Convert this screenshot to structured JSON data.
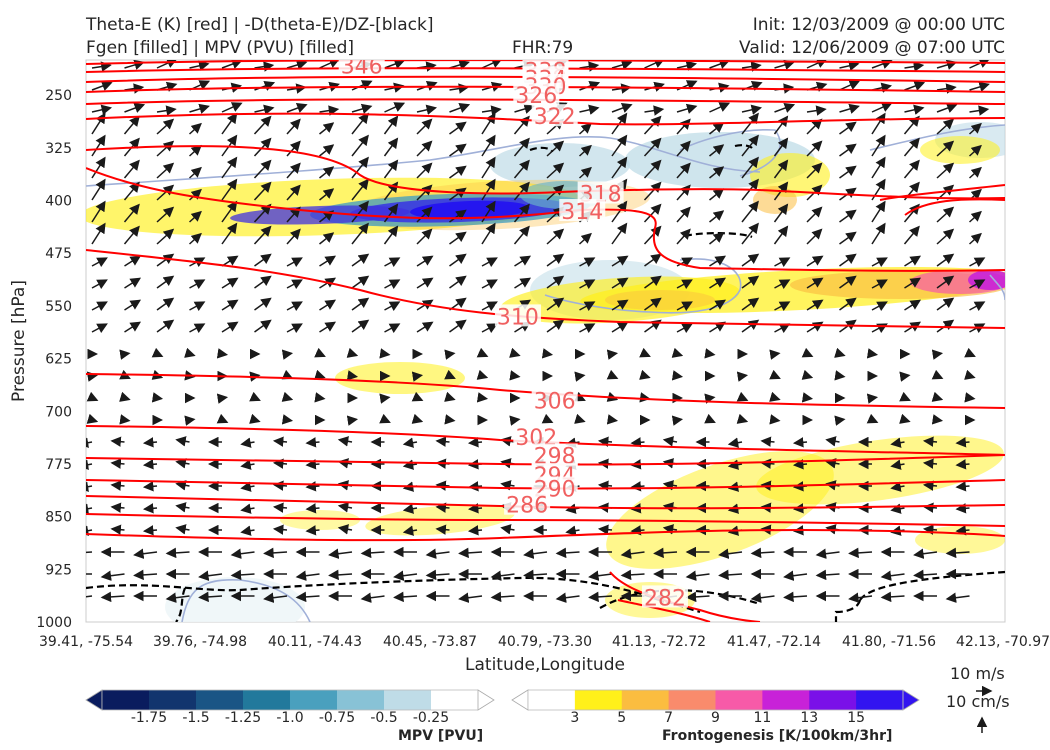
{
  "header": {
    "line1_left": "Theta-E (K) [red] | -D(theta-E)/DZ-[black]",
    "line2_left": "Fgen [filled] | MPV (PVU) [filled]",
    "fhr": "FHR:79",
    "init": "Init: 12/03/2009 @ 00:00 UTC",
    "valid": "Valid: 12/06/2009 @ 07:00 UTC"
  },
  "chart_data": {
    "type": "contour",
    "xlabel": "Latitude,Longitude",
    "ylabel": "Pressure [hPa]",
    "y_scale": "pressure (inverted, 1000 at bottom)",
    "ylim": [
      1000,
      200
    ],
    "x_ticks": [
      "39.41, -75.54",
      "39.76, -74.98",
      "40.11, -74.43",
      "40.45, -73.87",
      "40.79, -73.30",
      "41.13, -72.72",
      "41.47, -72.14",
      "41.80, -71.56",
      "42.13, -70.97"
    ],
    "y_ticks": [
      250,
      325,
      400,
      475,
      550,
      625,
      700,
      775,
      850,
      925,
      1000
    ],
    "theta_e_labels": [
      {
        "text": "346",
        "x_frac": 0.3,
        "p": 208
      },
      {
        "text": "338",
        "x_frac": 0.5,
        "p": 215
      },
      {
        "text": "334",
        "x_frac": 0.5,
        "p": 226
      },
      {
        "text": "330",
        "x_frac": 0.5,
        "p": 237
      },
      {
        "text": "326",
        "x_frac": 0.49,
        "p": 250
      },
      {
        "text": "322",
        "x_frac": 0.51,
        "p": 280
      },
      {
        "text": "318",
        "x_frac": 0.56,
        "p": 390
      },
      {
        "text": "314",
        "x_frac": 0.54,
        "p": 415
      },
      {
        "text": "310",
        "x_frac": 0.47,
        "p": 565
      },
      {
        "text": "306",
        "x_frac": 0.51,
        "p": 685
      },
      {
        "text": "302",
        "x_frac": 0.49,
        "p": 737
      },
      {
        "text": "298",
        "x_frac": 0.51,
        "p": 763
      },
      {
        "text": "294",
        "x_frac": 0.51,
        "p": 791
      },
      {
        "text": "290",
        "x_frac": 0.51,
        "p": 810
      },
      {
        "text": "286",
        "x_frac": 0.48,
        "p": 833
      },
      {
        "text": "282",
        "x_frac": 0.63,
        "p": 965
      }
    ],
    "mpv_colorbar": {
      "label": "MPV [PVU]",
      "ticks": [
        "-1.75",
        "-1.5",
        "-1.25",
        "-1.0",
        "-0.75",
        "-0.5",
        "-0.25"
      ],
      "colors": [
        "#0a1c5e",
        "#12356e",
        "#1a5585",
        "#22799c",
        "#4aa0be",
        "#88c2d6",
        "#bfdce7",
        "#ffffff"
      ]
    },
    "fgen_colorbar": {
      "label": "Frontogenesis [K/100km/3hr]",
      "ticks": [
        "3",
        "5",
        "7",
        "9",
        "11",
        "13",
        "15"
      ],
      "colors": [
        "#ffffff",
        "#fff01a",
        "#fbbd40",
        "#f98b6c",
        "#f75aa8",
        "#c822d8",
        "#7a10e8",
        "#3214f0"
      ]
    },
    "reference_vectors": [
      "10 m/s",
      "10 cm/s"
    ]
  },
  "colors": {
    "theta_e": "#ff0000",
    "theta_e_label": "#f06060",
    "stability": "#000000",
    "mpv_outline": "#a0b0d8",
    "vector": "#1a1a1a"
  }
}
